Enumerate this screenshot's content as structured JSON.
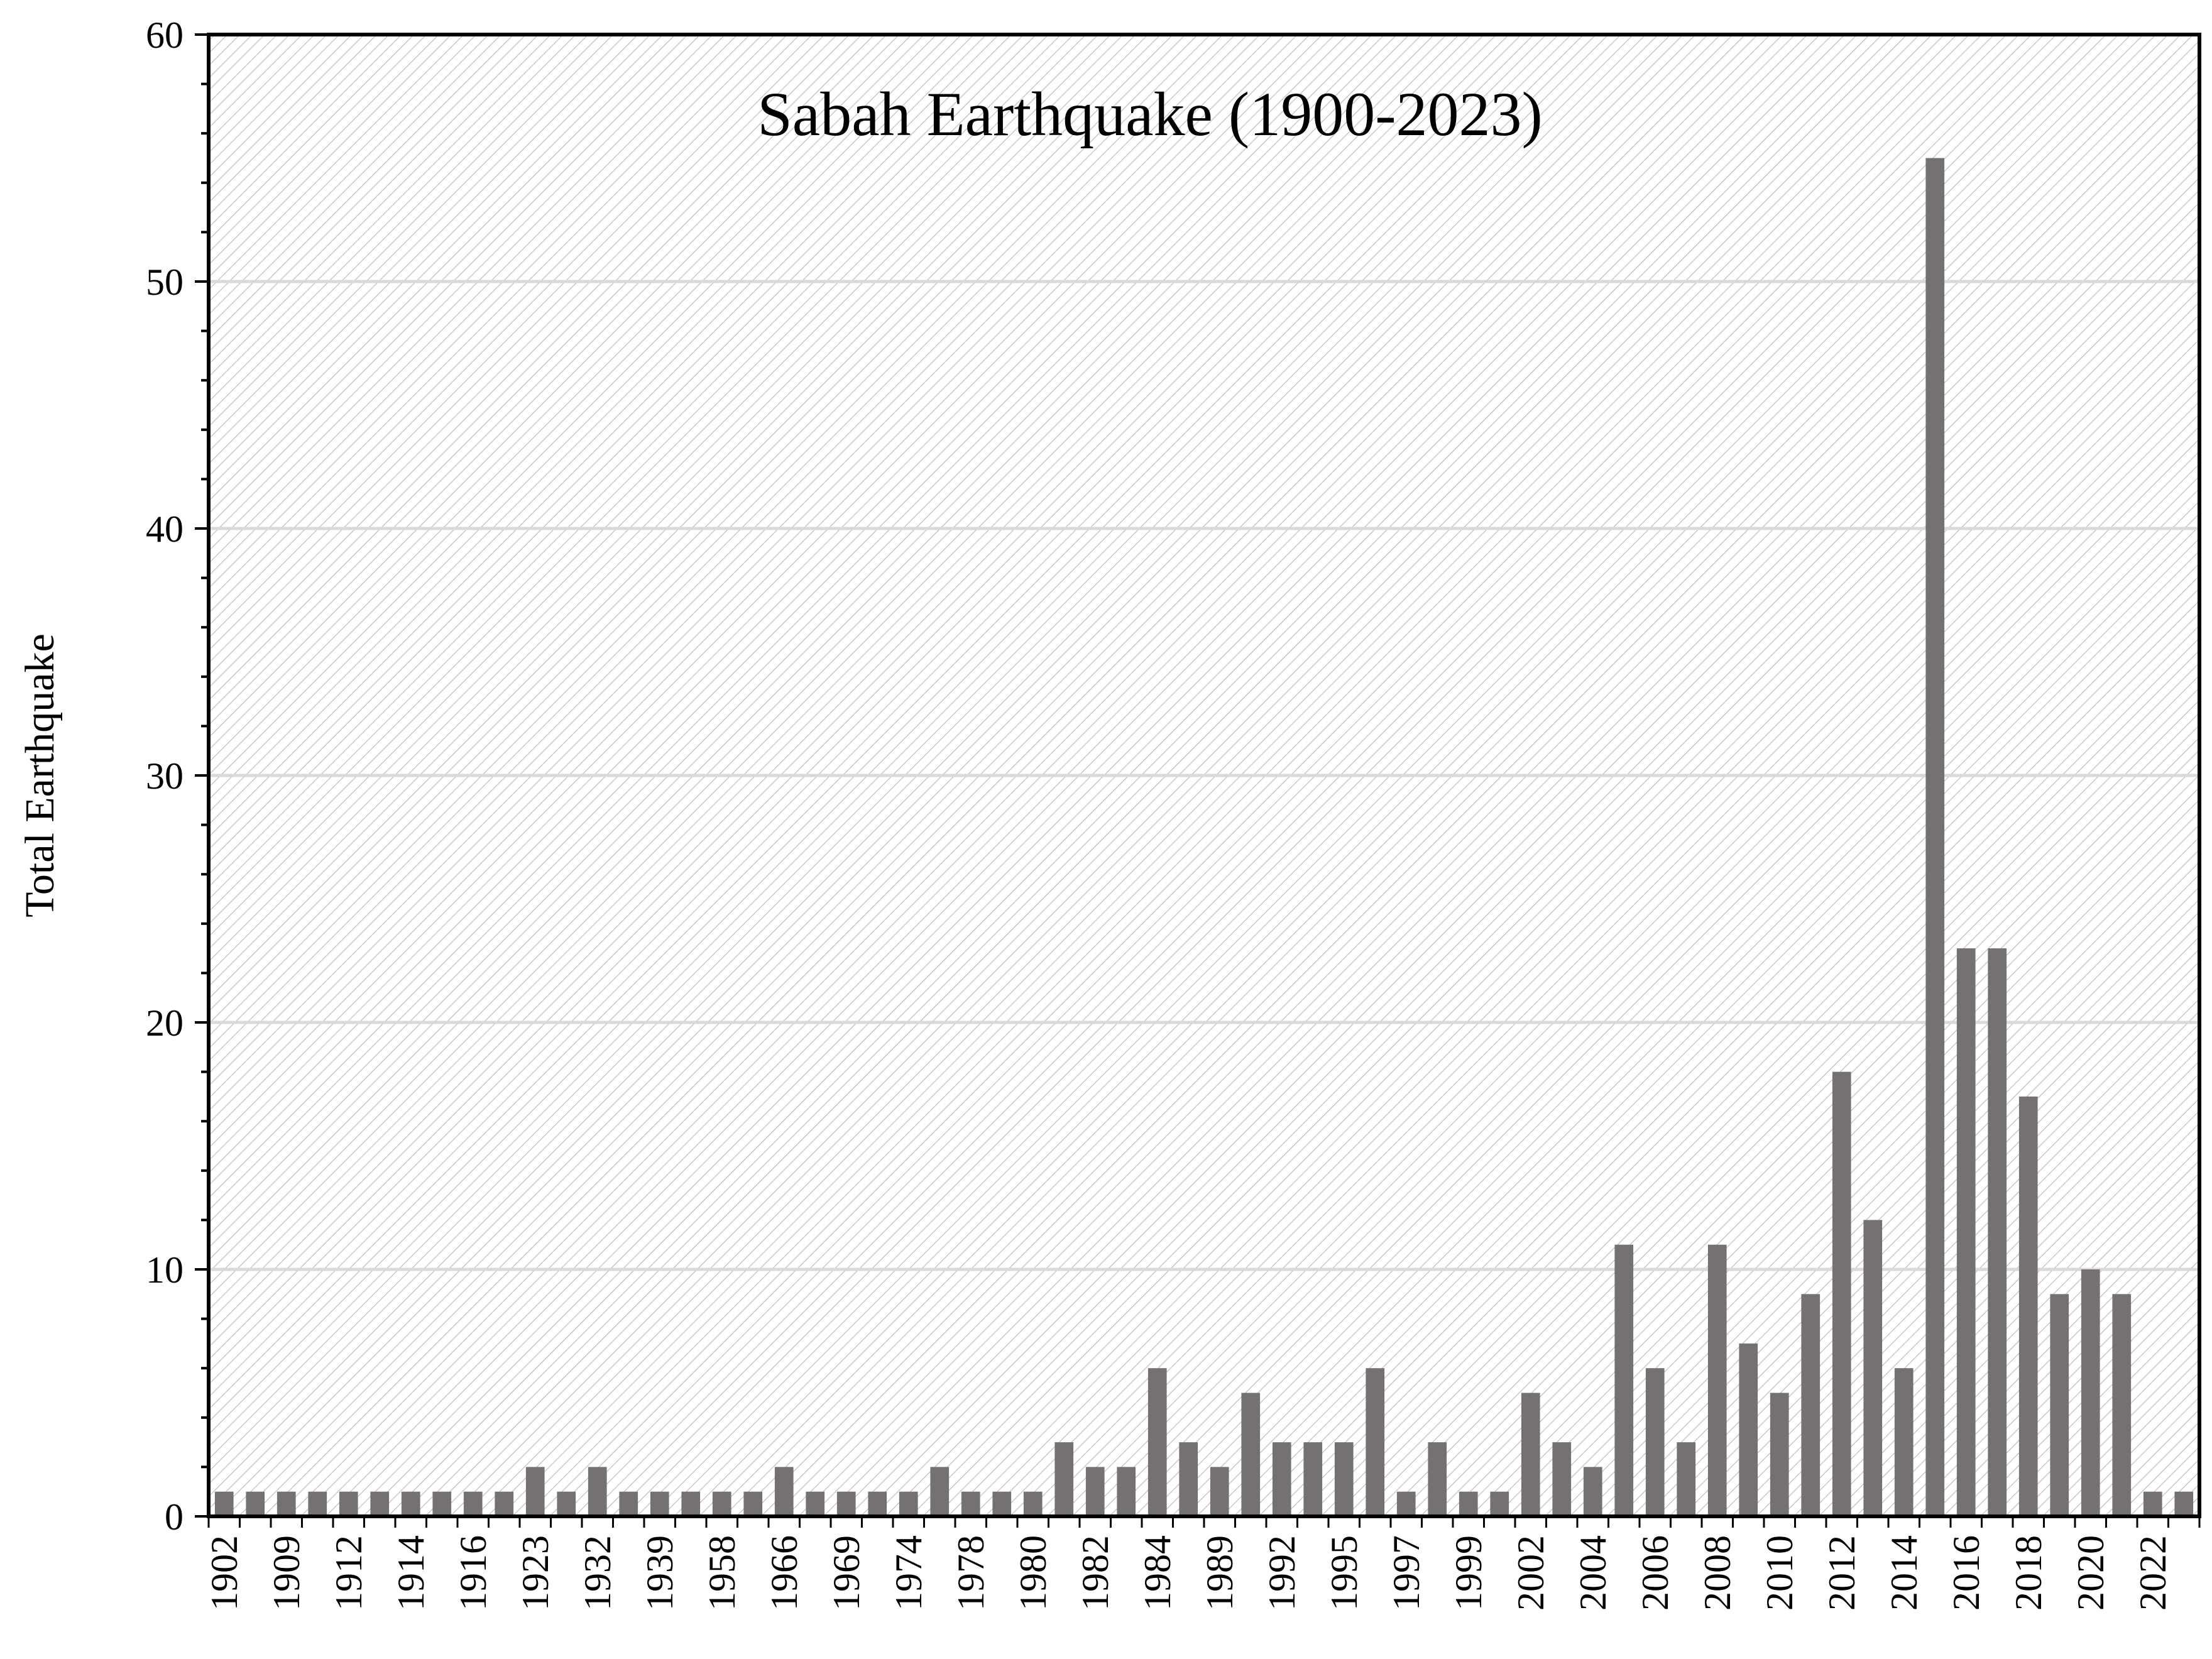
{
  "chart_data": {
    "type": "bar",
    "title": "Sabah Earthquake (1900-2023)",
    "xlabel": "",
    "ylabel": "Total Earthquake",
    "ylim": [
      0,
      60
    ],
    "yticks": [
      0,
      10,
      20,
      30,
      40,
      50,
      60
    ],
    "grid": true,
    "legend": "none",
    "x_tick_labels": [
      "1902",
      "1909",
      "1912",
      "1914",
      "1916",
      "1923",
      "1932",
      "1939",
      "1958",
      "1966",
      "1969",
      "1974",
      "1978",
      "1980",
      "1982",
      "1984",
      "1989",
      "1992",
      "1995",
      "1997",
      "1999",
      "2002",
      "2004",
      "2006",
      "2008",
      "2010",
      "2012",
      "2014",
      "2016",
      "2018",
      "2020",
      "2022"
    ],
    "values": [
      1,
      1,
      1,
      1,
      1,
      1,
      1,
      1,
      1,
      1,
      2,
      1,
      2,
      1,
      1,
      1,
      1,
      1,
      2,
      1,
      1,
      1,
      1,
      2,
      1,
      1,
      1,
      3,
      2,
      2,
      6,
      3,
      2,
      5,
      3,
      3,
      3,
      6,
      1,
      3,
      1,
      1,
      5,
      3,
      2,
      11,
      6,
      3,
      11,
      7,
      5,
      9,
      18,
      12,
      6,
      55,
      23,
      23,
      17,
      9,
      10,
      9,
      1,
      1
    ],
    "colors": {
      "bar": "#767171",
      "grid": "#d9d9d9",
      "hatch": "#c8c8c8",
      "axis": "#000000"
    }
  }
}
